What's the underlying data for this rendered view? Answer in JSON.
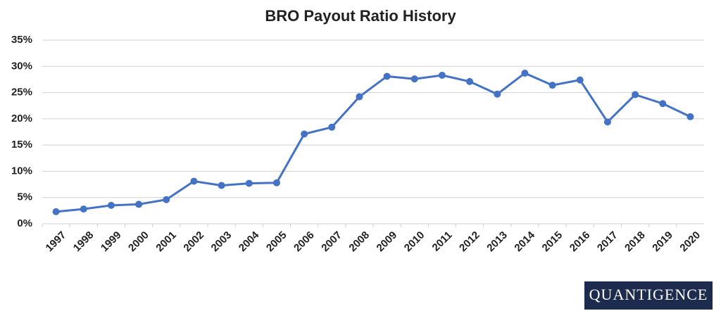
{
  "chart_data": {
    "type": "line",
    "title": "BRO Payout Ratio History",
    "categories": [
      "1997",
      "1998",
      "1999",
      "2000",
      "2001",
      "2002",
      "2003",
      "2004",
      "2005",
      "2006",
      "2007",
      "2008",
      "2009",
      "2010",
      "2011",
      "2012",
      "2013",
      "2014",
      "2015",
      "2016",
      "2017",
      "2018",
      "2019",
      "2020"
    ],
    "series": [
      {
        "name": "BRO",
        "color": "#4472c4",
        "values": [
          2.3,
          2.8,
          3.5,
          3.7,
          4.6,
          8.1,
          7.3,
          7.7,
          7.8,
          17.1,
          18.4,
          24.2,
          28.1,
          27.6,
          28.3,
          27.1,
          24.7,
          28.7,
          26.4,
          27.4,
          19.4,
          24.6,
          22.9,
          20.4
        ]
      }
    ],
    "ylim": [
      0,
      35
    ],
    "yticks": [
      {
        "value": 0,
        "label": "0%"
      },
      {
        "value": 5,
        "label": "5%"
      },
      {
        "value": 10,
        "label": "10%"
      },
      {
        "value": 15,
        "label": "15%"
      },
      {
        "value": 20,
        "label": "20%"
      },
      {
        "value": 25,
        "label": "25%"
      },
      {
        "value": 30,
        "label": "30%"
      },
      {
        "value": 35,
        "label": "35%"
      }
    ],
    "grid": true
  },
  "logo": "QUANTIGENCE"
}
